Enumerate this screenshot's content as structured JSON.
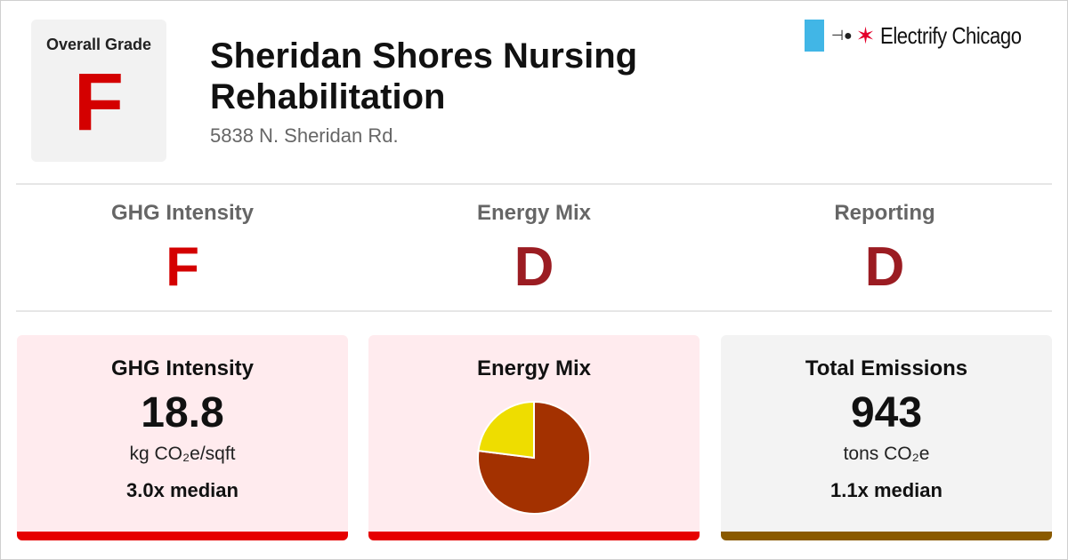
{
  "header": {
    "overall_grade_label": "Overall Grade",
    "overall_grade": "F",
    "building_name": "Sheridan Shores Nursing Rehabilitation",
    "address": "5838 N. Sheridan Rd."
  },
  "brand": {
    "name": "Electrify Chicago",
    "flag_color": "#41b6e6",
    "star_color": "#e4002b"
  },
  "subgrades": [
    {
      "label": "GHG Intensity",
      "grade": "F",
      "color": "#d40000"
    },
    {
      "label": "Energy Mix",
      "grade": "D",
      "color": "#9b1c22"
    },
    {
      "label": "Reporting",
      "grade": "D",
      "color": "#9b1c22"
    }
  ],
  "cards": {
    "ghg": {
      "title": "GHG Intensity",
      "value": "18.8",
      "unit": "kg CO₂e/sqft",
      "median": "3.0x median",
      "bg": "#ffebee",
      "bar_color": "#e60000"
    },
    "energy": {
      "title": "Energy Mix",
      "bg": "#ffebee",
      "bar_color": "#e60000"
    },
    "total": {
      "title": "Total Emissions",
      "value": "943",
      "unit": "tons CO₂e",
      "median": "1.1x median",
      "bg": "#f3f3f3",
      "bar_color": "#8a5a00"
    }
  },
  "chart_data": {
    "type": "pie",
    "slices": [
      {
        "value": 0.77,
        "color": "#a33100"
      },
      {
        "value": 0.23,
        "color": "#eedd00"
      }
    ]
  }
}
